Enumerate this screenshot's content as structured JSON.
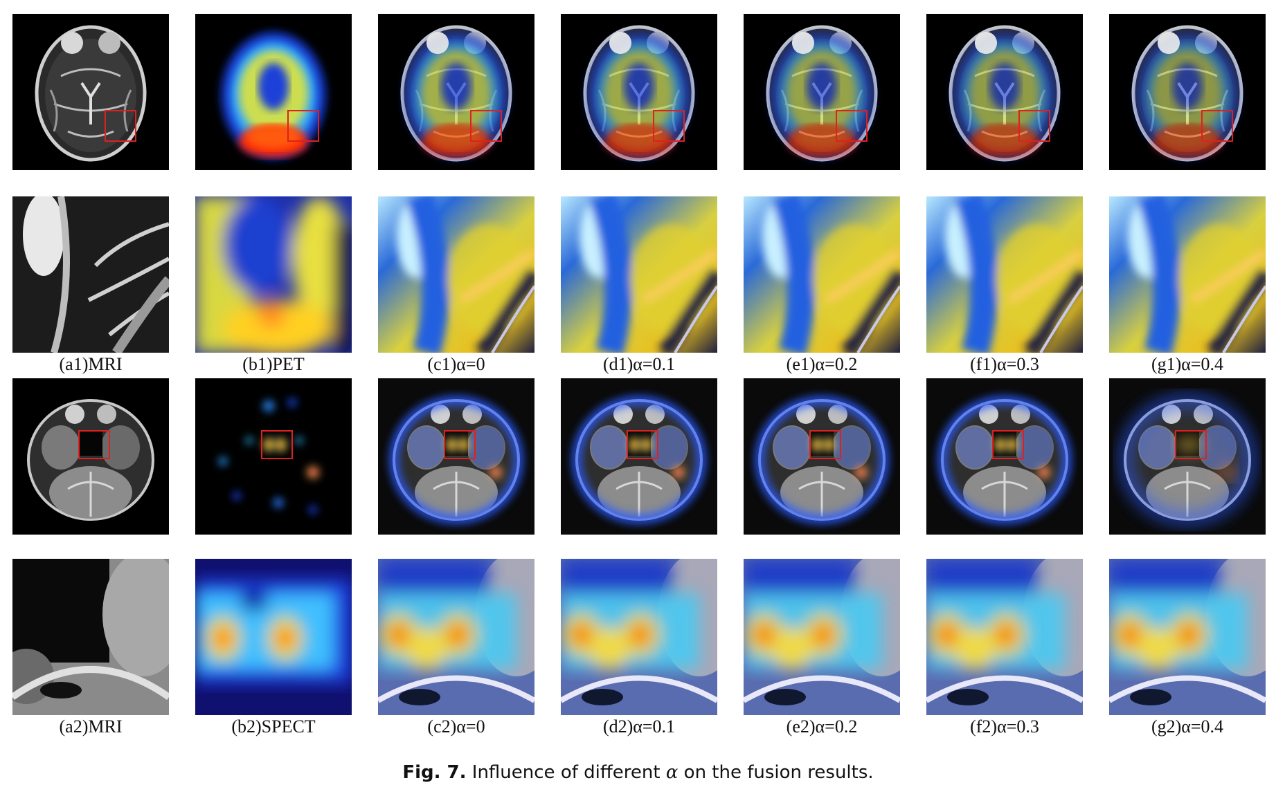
{
  "figure": {
    "rows": [
      {
        "id": "row1-full",
        "kind": "brain",
        "scene": "pet"
      },
      {
        "id": "row1-zoom",
        "kind": "zoom",
        "scene": "pet",
        "captions": [
          "(a1)MRI",
          "(b1)PET",
          "(c1)α=0",
          "(d1)α=0.1",
          "(e1)α=0.2",
          "(f1)α=0.3",
          "(g1)α=0.4"
        ]
      },
      {
        "id": "row2-full",
        "kind": "brain",
        "scene": "spect"
      },
      {
        "id": "row2-zoom",
        "kind": "zoom",
        "scene": "spect",
        "captions": [
          "(a2)MRI",
          "(b2)SPECT",
          "(c2)α=0",
          "(d2)α=0.1",
          "(e2)α=0.2",
          "(f2)α=0.3",
          "(g2)α=0.4"
        ]
      }
    ],
    "columns": [
      "mri",
      "functional",
      "fused",
      "fused",
      "fused",
      "fused",
      "fused"
    ],
    "roi_color": "#e02020",
    "caption": {
      "label": "Fig. 7.",
      "text_before": "Influence of different",
      "symbol": "α",
      "text_after": "on the fusion results."
    }
  }
}
